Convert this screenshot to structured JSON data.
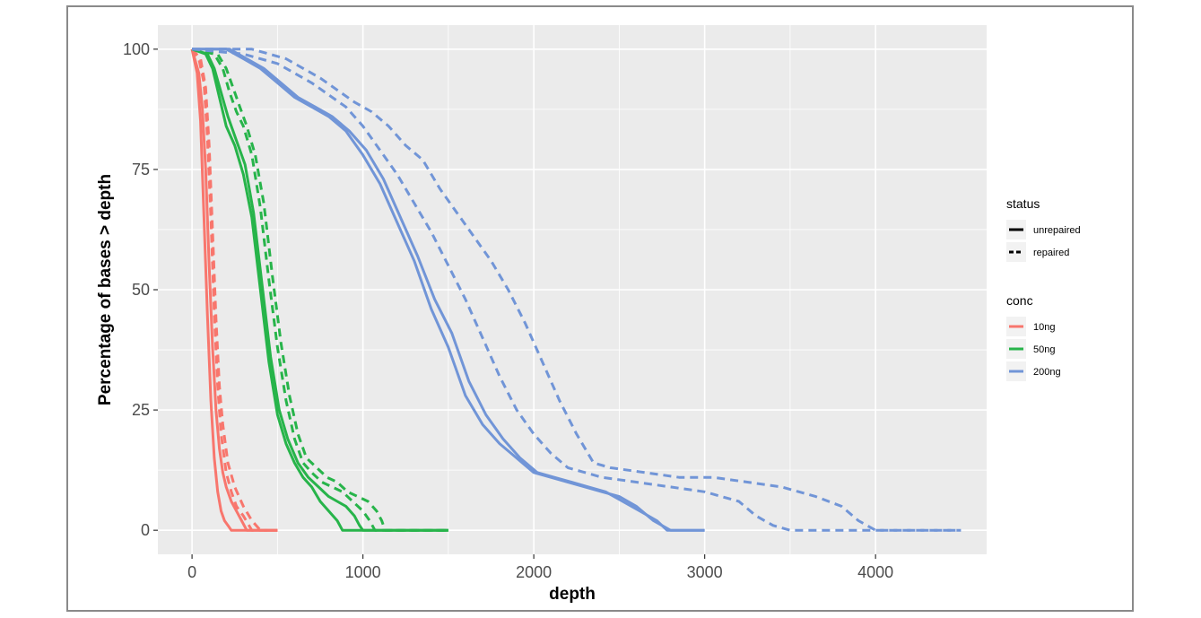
{
  "chart_data": {
    "type": "line",
    "title": "",
    "xlabel": "depth",
    "ylabel": "Percentage of bases > depth",
    "xlim": [
      -200,
      4650
    ],
    "ylim": [
      -5,
      105
    ],
    "x_ticks": [
      0,
      1000,
      2000,
      3000,
      4000
    ],
    "y_ticks": [
      0,
      25,
      50,
      75,
      100
    ],
    "x_tick_labels": [
      "0",
      "1000",
      "2000",
      "3000",
      "4000"
    ],
    "y_tick_labels": [
      "0",
      "25",
      "50",
      "75",
      "100"
    ],
    "grid": true,
    "legend_placement": "right",
    "legend": {
      "status": {
        "title": "status",
        "entries": [
          "unrepaired",
          "repaired"
        ]
      },
      "conc": {
        "title": "conc",
        "entries": [
          "10ng",
          "50ng",
          "200ng"
        ]
      }
    },
    "colors": {
      "10ng": "#F8766D",
      "50ng": "#27B44A",
      "200ng": "#7195D7",
      "panel": "#EBEBEB",
      "grid": "#FFFFFF"
    },
    "series": [
      {
        "conc": "10ng",
        "status": "unrepaired",
        "x": [
          0,
          30,
          50,
          70,
          90,
          110,
          130,
          150,
          170,
          190,
          210,
          230,
          500
        ],
        "y": [
          100,
          95,
          85,
          65,
          45,
          27,
          15,
          8,
          4,
          2,
          1,
          0,
          0
        ]
      },
      {
        "conc": "10ng",
        "status": "unrepaired",
        "x": [
          0,
          40,
          60,
          80,
          100,
          120,
          140,
          160,
          180,
          200,
          230,
          260,
          290,
          320,
          500
        ],
        "y": [
          100,
          95,
          88,
          75,
          55,
          38,
          25,
          17,
          12,
          9,
          6,
          4,
          2,
          0,
          0
        ]
      },
      {
        "conc": "10ng",
        "status": "repaired",
        "x": [
          0,
          40,
          70,
          90,
          110,
          130,
          150,
          170,
          200,
          230,
          260,
          300,
          350,
          500
        ],
        "y": [
          100,
          98,
          93,
          82,
          65,
          45,
          30,
          20,
          12,
          8,
          5,
          3,
          0,
          0
        ]
      },
      {
        "conc": "10ng",
        "status": "repaired",
        "x": [
          0,
          50,
          80,
          100,
          120,
          140,
          160,
          180,
          210,
          250,
          300,
          350,
          400,
          500
        ],
        "y": [
          100,
          98,
          92,
          80,
          62,
          44,
          30,
          22,
          14,
          9,
          5,
          2,
          0,
          0
        ]
      },
      {
        "conc": "50ng",
        "status": "unrepaired",
        "x": [
          0,
          80,
          120,
          160,
          200,
          250,
          300,
          350,
          400,
          450,
          500,
          550,
          600,
          650,
          700,
          750,
          800,
          850,
          880,
          900,
          1500
        ],
        "y": [
          100,
          99,
          96,
          90,
          84,
          80,
          74,
          65,
          50,
          35,
          24,
          18,
          14,
          11,
          9,
          6,
          4,
          2,
          0,
          0,
          0
        ]
      },
      {
        "conc": "50ng",
        "status": "unrepaired",
        "x": [
          0,
          90,
          130,
          170,
          210,
          260,
          310,
          360,
          410,
          460,
          510,
          560,
          620,
          680,
          740,
          800,
          850,
          900,
          950,
          980,
          1000,
          1500
        ],
        "y": [
          100,
          99,
          96,
          91,
          86,
          81,
          76,
          66,
          51,
          36,
          25,
          19,
          14,
          11,
          9,
          7,
          6,
          5,
          3,
          1,
          0,
          0
        ]
      },
      {
        "conc": "50ng",
        "status": "repaired",
        "x": [
          0,
          130,
          180,
          220,
          260,
          300,
          350,
          400,
          450,
          500,
          550,
          600,
          650,
          700,
          760,
          820,
          880,
          940,
          1000,
          1040,
          1070,
          1500
        ],
        "y": [
          100,
          99,
          96,
          91,
          87,
          84,
          78,
          67,
          52,
          38,
          27,
          19,
          14,
          12,
          10,
          9,
          8,
          6,
          4,
          2,
          0,
          0
        ]
      },
      {
        "conc": "50ng",
        "status": "repaired",
        "x": [
          0,
          150,
          200,
          240,
          280,
          320,
          370,
          420,
          470,
          520,
          570,
          620,
          670,
          730,
          790,
          850,
          910,
          970,
          1030,
          1080,
          1110,
          1130,
          1500
        ],
        "y": [
          100,
          99,
          96,
          92,
          88,
          84,
          78,
          68,
          53,
          39,
          28,
          20,
          15,
          13,
          11,
          10,
          8,
          7,
          6,
          4,
          2,
          0,
          0
        ]
      },
      {
        "conc": "200ng",
        "status": "unrepaired",
        "x": [
          0,
          200,
          300,
          400,
          500,
          600,
          700,
          800,
          900,
          1000,
          1100,
          1200,
          1300,
          1400,
          1500,
          1600,
          1700,
          1800,
          1900,
          2000,
          2100,
          2200,
          2300,
          2400,
          2500,
          2600,
          2700,
          2750,
          2800,
          3000
        ],
        "y": [
          100,
          100,
          98,
          96,
          93,
          90,
          88,
          86,
          83,
          78,
          72,
          64,
          56,
          46,
          38,
          28,
          22,
          18,
          15,
          12,
          11,
          10,
          9,
          8,
          7,
          5,
          2,
          1,
          0,
          0
        ]
      },
      {
        "conc": "200ng",
        "status": "unrepaired",
        "x": [
          0,
          220,
          320,
          420,
          520,
          620,
          720,
          820,
          920,
          1020,
          1120,
          1220,
          1320,
          1420,
          1520,
          1620,
          1720,
          1820,
          1920,
          2020,
          2120,
          2220,
          2320,
          2420,
          2520,
          2620,
          2720,
          2780,
          3000
        ],
        "y": [
          100,
          100,
          98,
          96,
          93,
          90,
          88,
          86,
          83,
          79,
          73,
          65,
          57,
          48,
          41,
          31,
          24,
          19,
          15,
          12,
          11,
          10,
          9,
          8,
          6,
          4,
          2,
          0,
          0
        ]
      },
      {
        "conc": "200ng",
        "status": "repaired",
        "x": [
          0,
          300,
          500,
          700,
          900,
          1000,
          1100,
          1200,
          1300,
          1400,
          1500,
          1600,
          1700,
          1800,
          1900,
          2000,
          2100,
          2200,
          2300,
          2400,
          2600,
          2800,
          3000,
          3200,
          3300,
          3400,
          3500,
          4000,
          4500
        ],
        "y": [
          100,
          99,
          97,
          93,
          88,
          84,
          79,
          74,
          68,
          62,
          55,
          48,
          40,
          32,
          25,
          20,
          16,
          13,
          12,
          11,
          10,
          9,
          8,
          6,
          3,
          1,
          0,
          0,
          0
        ]
      },
      {
        "conc": "200ng",
        "status": "repaired",
        "x": [
          0,
          350,
          550,
          750,
          950,
          1050,
          1150,
          1250,
          1350,
          1450,
          1550,
          1650,
          1750,
          1850,
          1950,
          2050,
          2150,
          2250,
          2350,
          2450,
          2650,
          2850,
          3050,
          3250,
          3450,
          3650,
          3800,
          3900,
          4000,
          4500
        ],
        "y": [
          100,
          100,
          98,
          94,
          89,
          87,
          84,
          80,
          77,
          71,
          66,
          61,
          56,
          50,
          43,
          35,
          27,
          20,
          14,
          13,
          12,
          11,
          11,
          10,
          9,
          7,
          5,
          2,
          0,
          0
        ]
      }
    ]
  }
}
